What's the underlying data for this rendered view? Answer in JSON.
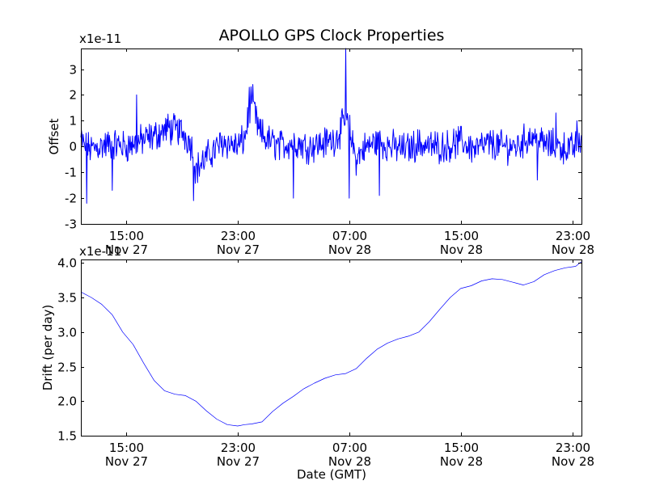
{
  "colors": {
    "line": "#0000ff",
    "frame": "#000000",
    "background": "#ffffff"
  },
  "chart_data": {
    "type": "line",
    "title": "APOLLO GPS Clock Properties",
    "xlabel": "Date (GMT)",
    "x_tick_labels": [
      {
        "time": "Nov 27 15:00",
        "line1": "15:00",
        "line2": "Nov 27"
      },
      {
        "time": "Nov 27 23:00",
        "line1": "23:00",
        "line2": "Nov 27"
      },
      {
        "time": "Nov 28 07:00",
        "line1": "07:00",
        "line2": "Nov 28"
      },
      {
        "time": "Nov 28 15:00",
        "line1": "15:00",
        "line2": "Nov 28"
      },
      {
        "time": "Nov 28 23:00",
        "line1": "23:00",
        "line2": "Nov 28"
      }
    ],
    "xlim": [
      "Nov 27 11:45",
      "Nov 28 23:40"
    ],
    "charts": [
      {
        "ylabel": "Offset",
        "multiplier": "x1e-11",
        "ylim": [
          -3,
          3.8
        ],
        "yticks": [
          "-3",
          "-2",
          "-1",
          "0",
          "1",
          "2",
          "3"
        ],
        "ytick_values": [
          -3,
          -2,
          -1,
          0,
          1,
          2,
          3
        ],
        "points": [
          [
            "Nov 27 11:45",
            0.3
          ],
          [
            "Nov 27 12:00",
            0.0
          ],
          [
            "Nov 27 12:30",
            -0.1
          ],
          [
            "Nov 27 13:00",
            0.0
          ],
          [
            "Nov 27 14:00",
            0.1
          ],
          [
            "Nov 27 15:00",
            0.0
          ],
          [
            "Nov 27 16:00",
            0.2
          ],
          [
            "Nov 27 17:00",
            0.4
          ],
          [
            "Nov 27 18:00",
            0.7
          ],
          [
            "Nov 27 19:00",
            0.6
          ],
          [
            "Nov 27 19:40",
            0.1
          ],
          [
            "Nov 27 20:00",
            -0.9
          ],
          [
            "Nov 27 21:00",
            -0.3
          ],
          [
            "Nov 27 22:00",
            0.2
          ],
          [
            "Nov 27 23:00",
            0.0
          ],
          [
            "Nov 27 23:30",
            0.3
          ],
          [
            "Nov 28 00:00",
            1.9
          ],
          [
            "Nov 28 00:30",
            0.6
          ],
          [
            "Nov 28 01:00",
            0.3
          ],
          [
            "Nov 28 02:00",
            0.0
          ],
          [
            "Nov 28 03:00",
            0.2
          ],
          [
            "Nov 28 04:00",
            0.0
          ],
          [
            "Nov 28 05:00",
            0.1
          ],
          [
            "Nov 28 06:00",
            0.3
          ],
          [
            "Nov 28 06:45",
            1.0
          ],
          [
            "Nov 28 07:00",
            0.7
          ],
          [
            "Nov 28 07:30",
            -0.5
          ],
          [
            "Nov 28 08:00",
            -0.1
          ],
          [
            "Nov 28 09:00",
            0.2
          ],
          [
            "Nov 28 10:00",
            0.0
          ],
          [
            "Nov 28 11:00",
            -0.1
          ],
          [
            "Nov 28 12:00",
            0.1
          ],
          [
            "Nov 28 13:00",
            0.0
          ],
          [
            "Nov 28 14:00",
            0.0
          ],
          [
            "Nov 28 15:00",
            0.2
          ],
          [
            "Nov 28 16:00",
            -0.1
          ],
          [
            "Nov 28 17:00",
            0.1
          ],
          [
            "Nov 28 18:00",
            0.0
          ],
          [
            "Nov 28 19:00",
            0.0
          ],
          [
            "Nov 28 20:00",
            0.4
          ],
          [
            "Nov 28 21:00",
            0.1
          ],
          [
            "Nov 28 22:00",
            0.0
          ],
          [
            "Nov 28 23:00",
            -0.1
          ],
          [
            "Nov 28 23:40",
            0.3
          ]
        ],
        "spikes": [
          [
            "Nov 27 12:10",
            -2.2
          ],
          [
            "Nov 27 14:00",
            -1.7
          ],
          [
            "Nov 27 15:45",
            2.0
          ],
          [
            "Nov 27 19:50",
            -2.1
          ],
          [
            "Nov 27 23:50",
            2.3
          ],
          [
            "Nov 28 03:00",
            -2.0
          ],
          [
            "Nov 28 06:45",
            3.8
          ],
          [
            "Nov 28 07:00",
            -2.0
          ],
          [
            "Nov 28 09:10",
            -1.9
          ],
          [
            "Nov 28 20:30",
            -1.3
          ],
          [
            "Nov 28 21:50",
            1.3
          ],
          [
            "Nov 28 23:20",
            1.0
          ]
        ]
      },
      {
        "ylabel": "Drift (per day)",
        "multiplier": "x1e-11",
        "ylim": [
          1.5,
          4.05
        ],
        "yticks": [
          "1.5",
          "2.0",
          "2.5",
          "3.0",
          "3.5",
          "4.0"
        ],
        "ytick_values": [
          1.5,
          2.0,
          2.5,
          3.0,
          3.5,
          4.0
        ],
        "points": [
          [
            "Nov 27 11:45",
            3.58
          ],
          [
            "Nov 27 12:30",
            3.5
          ],
          [
            "Nov 27 13:15",
            3.4
          ],
          [
            "Nov 27 14:00",
            3.25
          ],
          [
            "Nov 27 14:45",
            3.0
          ],
          [
            "Nov 27 15:30",
            2.82
          ],
          [
            "Nov 27 16:15",
            2.55
          ],
          [
            "Nov 27 17:00",
            2.3
          ],
          [
            "Nov 27 17:45",
            2.15
          ],
          [
            "Nov 27 18:30",
            2.1
          ],
          [
            "Nov 27 19:15",
            2.08
          ],
          [
            "Nov 27 20:00",
            2.0
          ],
          [
            "Nov 27 20:45",
            1.86
          ],
          [
            "Nov 27 21:30",
            1.74
          ],
          [
            "Nov 27 22:15",
            1.66
          ],
          [
            "Nov 27 23:00",
            1.64
          ],
          [
            "Nov 27 23:30",
            1.66
          ],
          [
            "Nov 28 00:00",
            1.67
          ],
          [
            "Nov 28 00:45",
            1.7
          ],
          [
            "Nov 28 01:30",
            1.85
          ],
          [
            "Nov 28 02:15",
            1.97
          ],
          [
            "Nov 28 03:00",
            2.07
          ],
          [
            "Nov 28 03:45",
            2.18
          ],
          [
            "Nov 28 04:30",
            2.26
          ],
          [
            "Nov 28 05:15",
            2.33
          ],
          [
            "Nov 28 06:00",
            2.38
          ],
          [
            "Nov 28 06:45",
            2.4
          ],
          [
            "Nov 28 07:30",
            2.47
          ],
          [
            "Nov 28 08:15",
            2.62
          ],
          [
            "Nov 28 09:00",
            2.75
          ],
          [
            "Nov 28 09:45",
            2.84
          ],
          [
            "Nov 28 10:30",
            2.9
          ],
          [
            "Nov 28 11:15",
            2.94
          ],
          [
            "Nov 28 12:00",
            3.0
          ],
          [
            "Nov 28 12:45",
            3.15
          ],
          [
            "Nov 28 13:30",
            3.33
          ],
          [
            "Nov 28 14:15",
            3.5
          ],
          [
            "Nov 28 15:00",
            3.63
          ],
          [
            "Nov 28 15:45",
            3.67
          ],
          [
            "Nov 28 16:30",
            3.74
          ],
          [
            "Nov 28 17:15",
            3.77
          ],
          [
            "Nov 28 18:00",
            3.76
          ],
          [
            "Nov 28 18:45",
            3.72
          ],
          [
            "Nov 28 19:30",
            3.68
          ],
          [
            "Nov 28 20:15",
            3.73
          ],
          [
            "Nov 28 21:00",
            3.83
          ],
          [
            "Nov 28 21:45",
            3.89
          ],
          [
            "Nov 28 22:30",
            3.93
          ],
          [
            "Nov 28 23:15",
            3.95
          ],
          [
            "Nov 28 23:40",
            4.02
          ]
        ]
      }
    ]
  }
}
